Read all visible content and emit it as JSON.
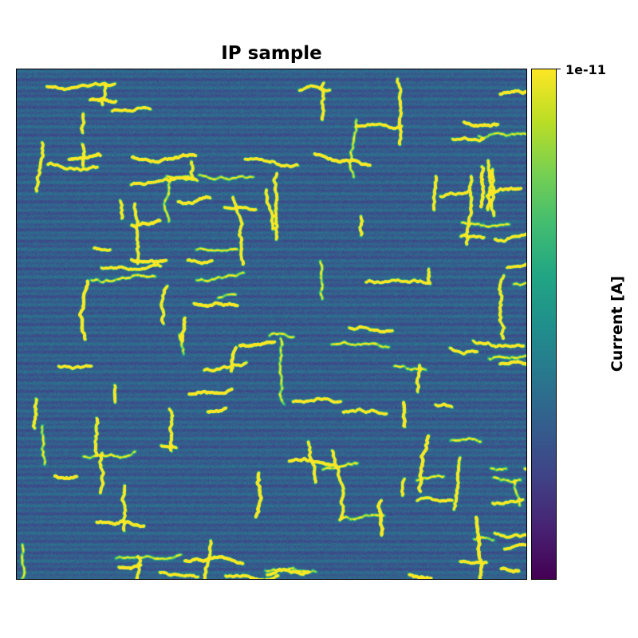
{
  "chart_data": {
    "type": "heatmap",
    "title": "IP sample",
    "colormap": "viridis",
    "xlabel": "",
    "ylabel": "",
    "x_ticks_visible": false,
    "y_ticks_visible": false,
    "grid": false,
    "colorbar": {
      "label": "Current [A]",
      "tick_labels": [
        "1e-11"
      ],
      "position": "right"
    },
    "colors": {
      "viridis_low": "#440154",
      "viridis_mid": "#21918c",
      "viridis_high": "#fde725",
      "background_tone": "#3b528b"
    }
  }
}
